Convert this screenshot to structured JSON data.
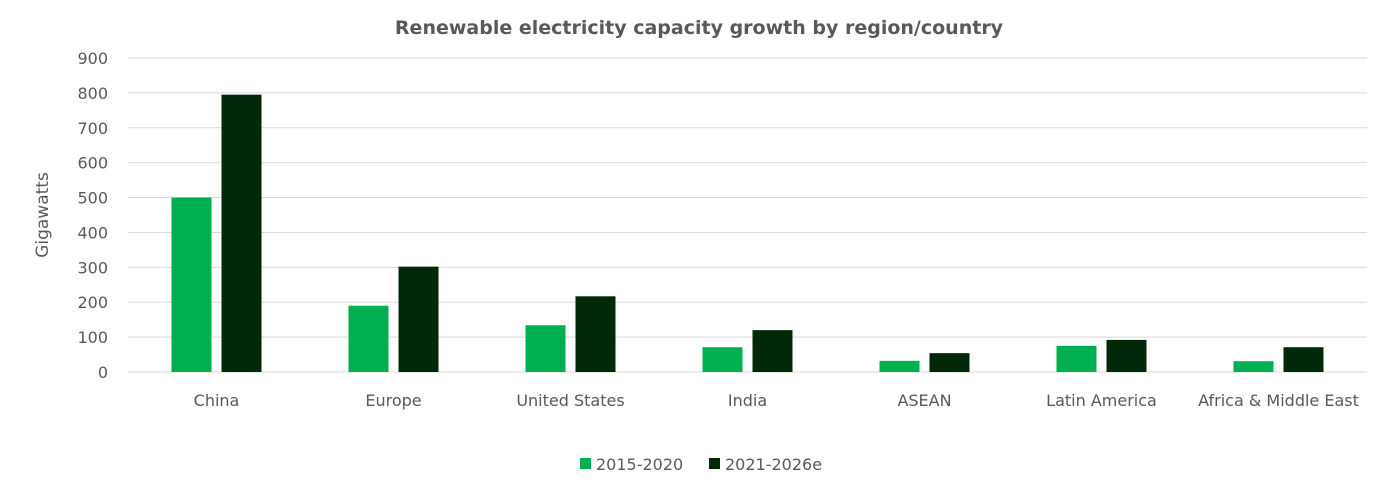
{
  "chart_data": {
    "type": "bar",
    "title": "Renewable electricity capacity growth by region/country",
    "xlabel": "",
    "ylabel": "Gigawatts",
    "ylim": [
      0,
      900
    ],
    "yticks": [
      0,
      100,
      200,
      300,
      400,
      500,
      600,
      700,
      800,
      900
    ],
    "grid": true,
    "legend_position": "bottom",
    "categories": [
      "China",
      "Europe",
      "United States",
      "India",
      "ASEAN",
      "Latin America",
      "Africa & Middle East"
    ],
    "series": [
      {
        "name": "2015-2020",
        "color": "#00b050",
        "values": [
          500,
          190,
          134,
          71,
          32,
          75,
          31
        ]
      },
      {
        "name": "2021-2026e",
        "color": "#002809",
        "values": [
          795,
          302,
          217,
          120,
          54,
          92,
          71
        ]
      }
    ]
  }
}
